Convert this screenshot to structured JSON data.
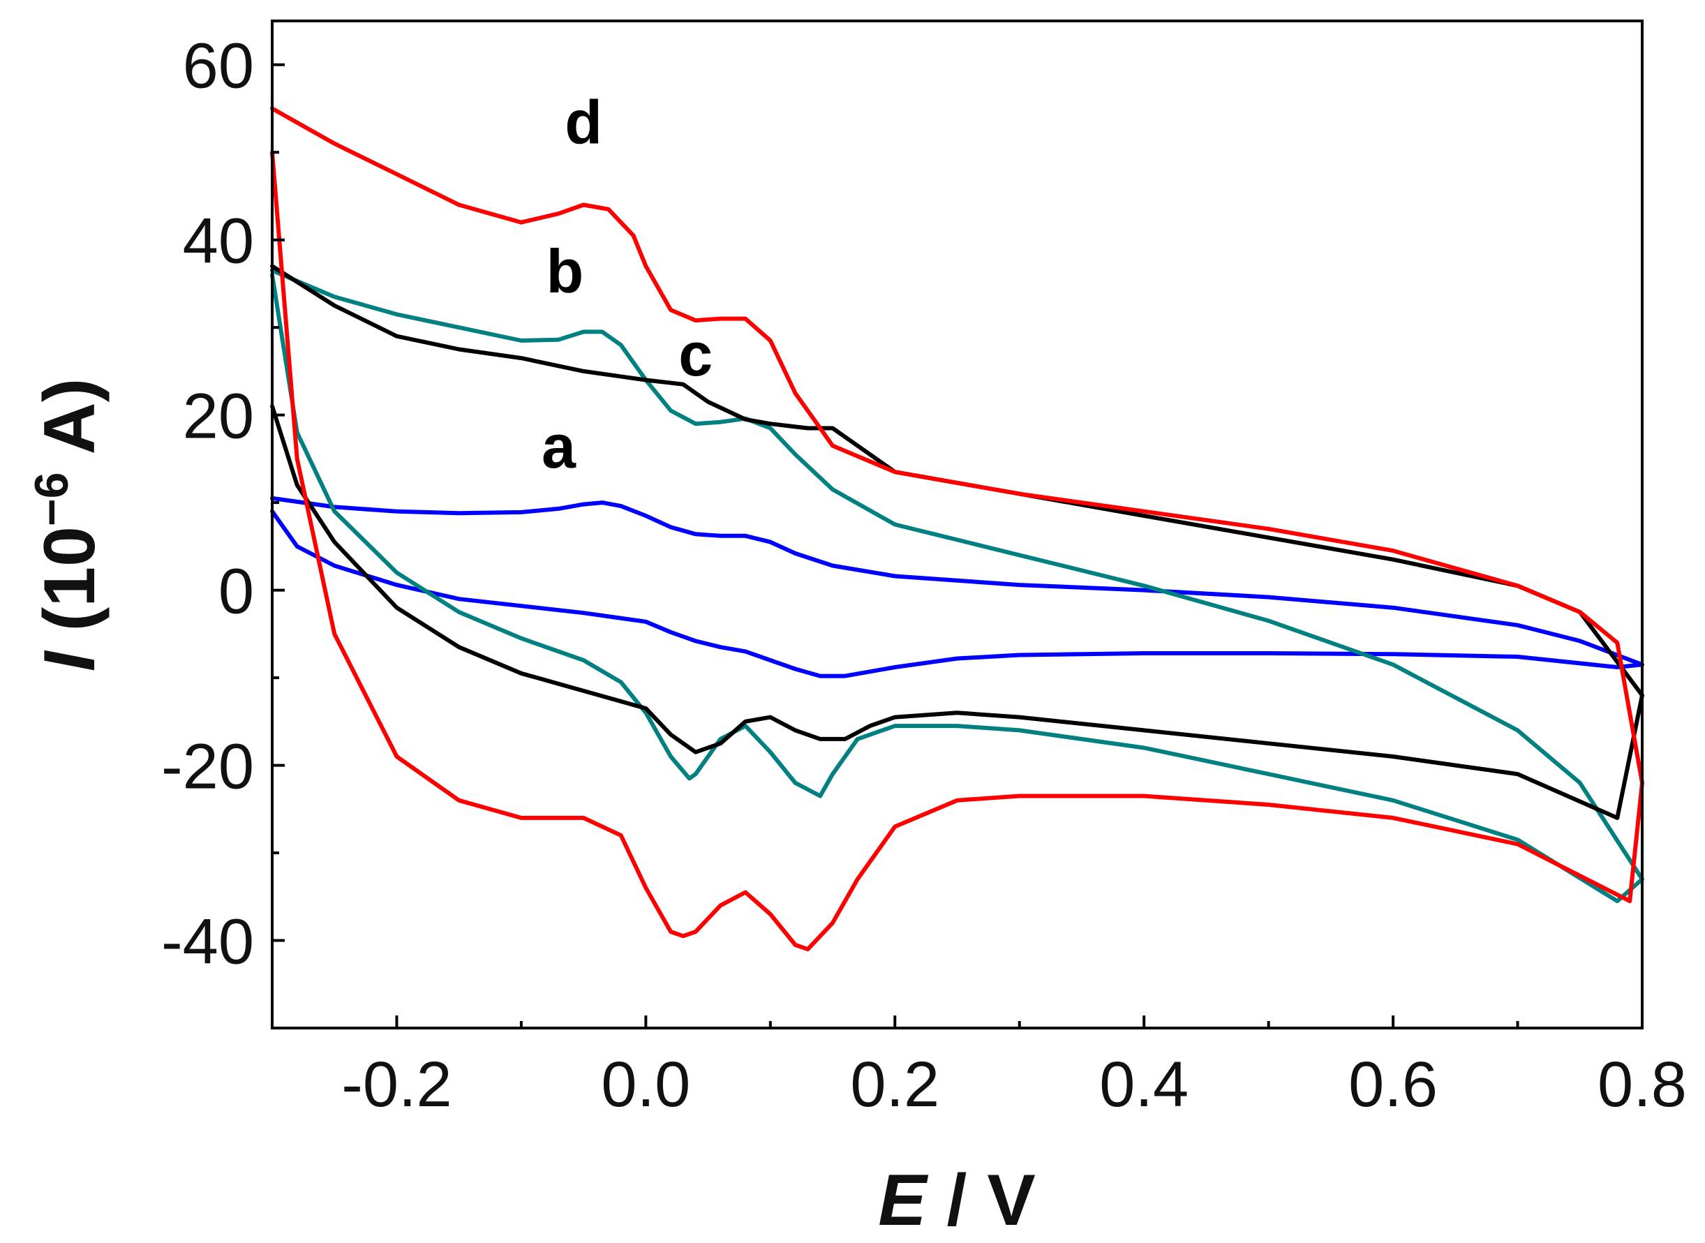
{
  "chart_data": {
    "type": "line",
    "title": "",
    "xlabel": "E / V",
    "xlabel_parts": {
      "symbol": "E",
      "unit": " / V"
    },
    "ylabel": "I (10^-6 A)",
    "ylabel_parts": {
      "symbol": "I",
      "pre": " (10",
      "exp": "−6",
      "post": " A)"
    },
    "xlim": [
      -0.3,
      0.8
    ],
    "ylim": [
      -50,
      65
    ],
    "xticks": [
      -0.2,
      0.0,
      0.2,
      0.4,
      0.6,
      0.8
    ],
    "xtick_labels": [
      "-0.2",
      "0.0",
      "0.2",
      "0.4",
      "0.6",
      "0.8"
    ],
    "yticks": [
      -40,
      -20,
      0,
      20,
      40,
      60
    ],
    "ytick_labels": [
      "-40",
      "-20",
      "0",
      "20",
      "40",
      "60"
    ],
    "grid": false,
    "series": [
      {
        "name": "a",
        "color": "#0000ff",
        "label_at": [
          -0.07,
          14
        ],
        "x": [
          -0.3,
          -0.25,
          -0.2,
          -0.15,
          -0.1,
          -0.07,
          -0.05,
          -0.035,
          -0.02,
          0.0,
          0.02,
          0.04,
          0.06,
          0.08,
          0.1,
          0.12,
          0.15,
          0.2,
          0.3,
          0.4,
          0.5,
          0.6,
          0.7,
          0.75,
          0.8,
          0.78,
          0.7,
          0.6,
          0.5,
          0.4,
          0.3,
          0.25,
          0.2,
          0.16,
          0.14,
          0.12,
          0.1,
          0.08,
          0.06,
          0.04,
          0.02,
          0.0,
          -0.05,
          -0.1,
          -0.15,
          -0.2,
          -0.25,
          -0.28,
          -0.3
        ],
        "y": [
          10.5,
          9.5,
          9.0,
          8.8,
          8.9,
          9.3,
          9.8,
          10.0,
          9.6,
          8.5,
          7.2,
          6.4,
          6.2,
          6.2,
          5.5,
          4.2,
          2.8,
          1.6,
          0.6,
          0.0,
          -0.8,
          -2.0,
          -4.0,
          -5.8,
          -8.5,
          -8.8,
          -7.6,
          -7.3,
          -7.2,
          -7.2,
          -7.4,
          -7.8,
          -8.8,
          -9.8,
          -9.8,
          -9.0,
          -8.0,
          -7.0,
          -6.5,
          -5.8,
          -4.8,
          -3.6,
          -2.6,
          -1.8,
          -1.0,
          0.6,
          2.8,
          5.0,
          9.0
        ]
      },
      {
        "name": "b",
        "color": "#008080",
        "label_at": [
          -0.065,
          34
        ],
        "x": [
          -0.3,
          -0.25,
          -0.2,
          -0.15,
          -0.1,
          -0.07,
          -0.05,
          -0.035,
          -0.02,
          0.0,
          0.02,
          0.04,
          0.06,
          0.08,
          0.1,
          0.12,
          0.15,
          0.2,
          0.3,
          0.4,
          0.5,
          0.6,
          0.7,
          0.75,
          0.8,
          0.78,
          0.7,
          0.6,
          0.5,
          0.4,
          0.3,
          0.25,
          0.2,
          0.17,
          0.15,
          0.14,
          0.12,
          0.1,
          0.08,
          0.06,
          0.04,
          0.035,
          0.02,
          0.0,
          -0.02,
          -0.05,
          -0.1,
          -0.15,
          -0.2,
          -0.25,
          -0.28,
          -0.3
        ],
        "y": [
          36.5,
          33.5,
          31.5,
          30.0,
          28.5,
          28.6,
          29.5,
          29.5,
          28.0,
          24.0,
          20.5,
          19.0,
          19.2,
          19.6,
          18.5,
          15.5,
          11.5,
          7.5,
          4.0,
          0.5,
          -3.5,
          -8.5,
          -16.0,
          -22.0,
          -33.0,
          -35.5,
          -28.5,
          -24.0,
          -21.0,
          -18.0,
          -16.0,
          -15.5,
          -15.5,
          -17.0,
          -21.0,
          -23.5,
          -22.0,
          -18.5,
          -15.5,
          -17.0,
          -21.0,
          -21.5,
          -19.0,
          -14.0,
          -10.5,
          -8.0,
          -5.5,
          -2.5,
          2.0,
          9.0,
          18.0,
          36.0
        ]
      },
      {
        "name": "c",
        "color": "#000000",
        "label_at": [
          0.04,
          24.5
        ],
        "x": [
          -0.3,
          -0.25,
          -0.2,
          -0.15,
          -0.1,
          -0.05,
          0.0,
          0.03,
          0.05,
          0.08,
          0.1,
          0.13,
          0.15,
          0.17,
          0.2,
          0.3,
          0.4,
          0.5,
          0.6,
          0.7,
          0.75,
          0.8,
          0.78,
          0.7,
          0.6,
          0.5,
          0.4,
          0.3,
          0.25,
          0.2,
          0.18,
          0.16,
          0.14,
          0.12,
          0.1,
          0.08,
          0.06,
          0.04,
          0.02,
          0.0,
          -0.05,
          -0.1,
          -0.15,
          -0.2,
          -0.25,
          -0.28,
          -0.3
        ],
        "y": [
          37.0,
          32.5,
          29.0,
          27.5,
          26.5,
          25.0,
          24.0,
          23.5,
          21.5,
          19.5,
          19.0,
          18.5,
          18.5,
          16.5,
          13.5,
          11.0,
          8.5,
          6.0,
          3.5,
          0.5,
          -2.5,
          -12.0,
          -26.0,
          -21.0,
          -19.0,
          -17.5,
          -16.0,
          -14.5,
          -14.0,
          -14.5,
          -15.5,
          -17.0,
          -17.0,
          -16.0,
          -14.5,
          -15.0,
          -17.5,
          -18.5,
          -16.5,
          -13.5,
          -11.5,
          -9.5,
          -6.5,
          -2.0,
          5.5,
          12.0,
          21.0
        ]
      },
      {
        "name": "d",
        "color": "#ff0000",
        "label_at": [
          -0.05,
          51
        ],
        "x": [
          -0.3,
          -0.25,
          -0.2,
          -0.15,
          -0.1,
          -0.07,
          -0.05,
          -0.03,
          -0.01,
          0.0,
          0.02,
          0.04,
          0.06,
          0.08,
          0.1,
          0.12,
          0.15,
          0.2,
          0.3,
          0.4,
          0.5,
          0.6,
          0.7,
          0.75,
          0.78,
          0.8,
          0.79,
          0.7,
          0.6,
          0.5,
          0.4,
          0.3,
          0.25,
          0.2,
          0.17,
          0.15,
          0.13,
          0.12,
          0.1,
          0.08,
          0.06,
          0.04,
          0.03,
          0.02,
          0.0,
          -0.02,
          -0.05,
          -0.1,
          -0.15,
          -0.2,
          -0.25,
          -0.28,
          -0.3
        ],
        "y": [
          55.0,
          51.0,
          47.5,
          44.0,
          42.0,
          43.0,
          44.0,
          43.5,
          40.5,
          37.0,
          32.0,
          30.8,
          31.0,
          31.0,
          28.5,
          22.5,
          16.5,
          13.5,
          11.0,
          9.0,
          7.0,
          4.5,
          0.5,
          -2.5,
          -6.0,
          -22.0,
          -35.5,
          -29.0,
          -26.0,
          -24.5,
          -23.5,
          -23.5,
          -24.0,
          -27.0,
          -33.0,
          -38.0,
          -41.0,
          -40.5,
          -37.0,
          -34.5,
          -36.0,
          -39.0,
          -39.5,
          -39.0,
          -34.0,
          -28.0,
          -26.0,
          -26.0,
          -24.0,
          -19.0,
          -5.0,
          15.0,
          50.0
        ]
      }
    ]
  }
}
